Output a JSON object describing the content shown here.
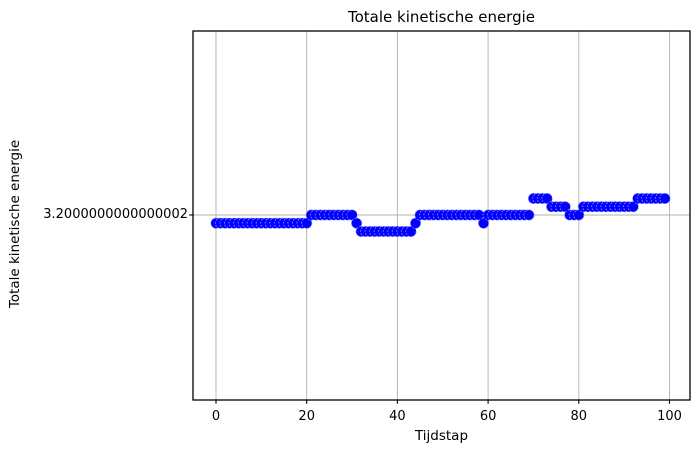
{
  "chart_data": {
    "type": "scatter",
    "title": "Totale kinetische energie",
    "xlabel": "Tijdstap",
    "ylabel": "Totale kinetische energie",
    "x_tick_labels": [
      "0",
      "20",
      "40",
      "60",
      "80",
      "100"
    ],
    "x_tick_values": [
      0,
      20,
      40,
      60,
      80,
      100
    ],
    "y_tick_label": "3.2000000000000002",
    "y_tick_value": 3.2,
    "xlim": [
      -4.95,
      103.95
    ],
    "ylim": [
      3.19999999999999,
      3.20000000000001
    ],
    "grid": true,
    "legend": false,
    "marker_color": "#0000ff",
    "grid_color": "#b0b0b0",
    "spine_color": "#000000",
    "x": [
      0,
      1,
      2,
      3,
      4,
      5,
      6,
      7,
      8,
      9,
      10,
      11,
      12,
      13,
      14,
      15,
      16,
      17,
      18,
      19,
      20,
      21,
      22,
      23,
      24,
      25,
      26,
      27,
      28,
      29,
      30,
      31,
      32,
      33,
      34,
      35,
      36,
      37,
      38,
      39,
      40,
      41,
      42,
      43,
      44,
      45,
      46,
      47,
      48,
      49,
      50,
      51,
      52,
      53,
      54,
      55,
      56,
      57,
      58,
      59,
      60,
      61,
      62,
      63,
      64,
      65,
      66,
      67,
      68,
      69,
      70,
      71,
      72,
      73,
      74,
      75,
      76,
      77,
      78,
      79,
      80,
      81,
      82,
      83,
      84,
      85,
      86,
      87,
      88,
      89,
      90,
      91,
      92,
      93,
      94,
      95,
      96,
      97,
      98,
      99
    ],
    "values": [
      3.1999999999999997,
      3.1999999999999997,
      3.1999999999999997,
      3.1999999999999997,
      3.1999999999999997,
      3.1999999999999997,
      3.1999999999999997,
      3.1999999999999997,
      3.1999999999999997,
      3.1999999999999997,
      3.1999999999999997,
      3.1999999999999997,
      3.1999999999999997,
      3.1999999999999997,
      3.1999999999999997,
      3.1999999999999997,
      3.1999999999999997,
      3.1999999999999997,
      3.1999999999999997,
      3.1999999999999997,
      3.1999999999999997,
      3.2,
      3.2,
      3.2,
      3.2,
      3.2,
      3.2,
      3.2,
      3.2,
      3.2,
      3.2,
      3.1999999999999997,
      3.1999999999999993,
      3.1999999999999993,
      3.1999999999999993,
      3.1999999999999993,
      3.1999999999999993,
      3.1999999999999993,
      3.1999999999999993,
      3.1999999999999993,
      3.1999999999999993,
      3.1999999999999993,
      3.1999999999999993,
      3.1999999999999993,
      3.1999999999999997,
      3.2,
      3.2,
      3.2,
      3.2,
      3.2,
      3.2,
      3.2,
      3.2,
      3.2,
      3.2,
      3.2,
      3.2,
      3.2,
      3.2,
      3.1999999999999997,
      3.2,
      3.2,
      3.2,
      3.2,
      3.2,
      3.2,
      3.2,
      3.2,
      3.2,
      3.2,
      3.200000000000001,
      3.200000000000001,
      3.200000000000001,
      3.200000000000001,
      3.2000000000000006,
      3.2000000000000006,
      3.2000000000000006,
      3.2000000000000006,
      3.2,
      3.2,
      3.2,
      3.2000000000000006,
      3.2000000000000006,
      3.2000000000000006,
      3.2000000000000006,
      3.2000000000000006,
      3.2000000000000006,
      3.2000000000000006,
      3.2000000000000006,
      3.2000000000000006,
      3.2000000000000006,
      3.2000000000000006,
      3.2000000000000006,
      3.200000000000001,
      3.200000000000001,
      3.200000000000001,
      3.200000000000001,
      3.200000000000001,
      3.200000000000001,
      3.200000000000001
    ]
  }
}
